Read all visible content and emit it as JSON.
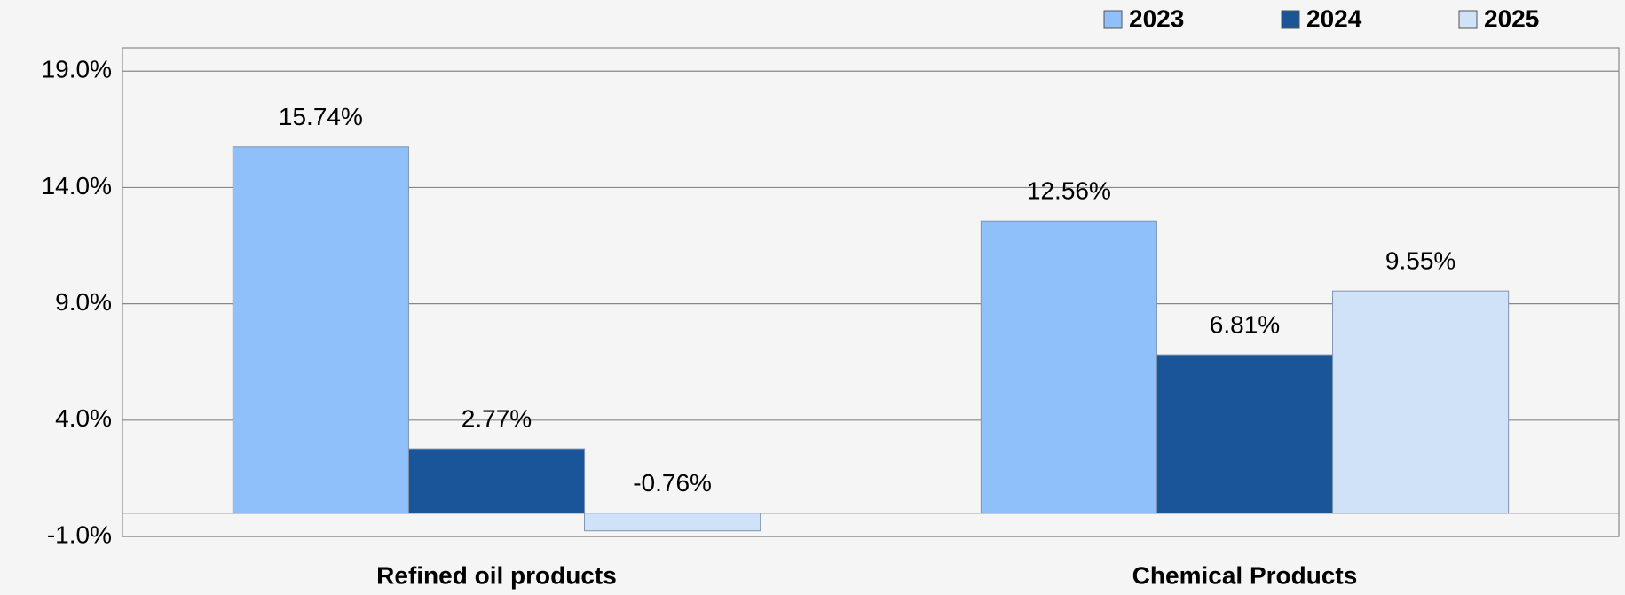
{
  "chart_data": {
    "type": "bar",
    "categories": [
      "Refined oil products",
      "Chemical Products"
    ],
    "series": [
      {
        "name": "2023",
        "color": "#90c0fa",
        "values": [
          15.74,
          12.56
        ],
        "value_labels": [
          "15.74%",
          "12.56%"
        ]
      },
      {
        "name": "2024",
        "color": "#1a5499",
        "values": [
          2.77,
          6.81
        ],
        "value_labels": [
          "2.77%",
          "6.81%"
        ]
      },
      {
        "name": "2025",
        "color": "#d0e2f8",
        "values": [
          -0.76,
          9.55
        ],
        "value_labels": [
          "-0.76%",
          "9.55%"
        ]
      }
    ],
    "ylim": [
      -1,
      20
    ],
    "yticks": [
      {
        "value": -1,
        "label": "-1.0%"
      },
      {
        "value": 4,
        "label": "4.0%"
      },
      {
        "value": 9,
        "label": "9.0%"
      },
      {
        "value": 14,
        "label": "14.0%"
      },
      {
        "value": 19,
        "label": "19.0%"
      }
    ],
    "grid": true,
    "legend": "top-right"
  }
}
